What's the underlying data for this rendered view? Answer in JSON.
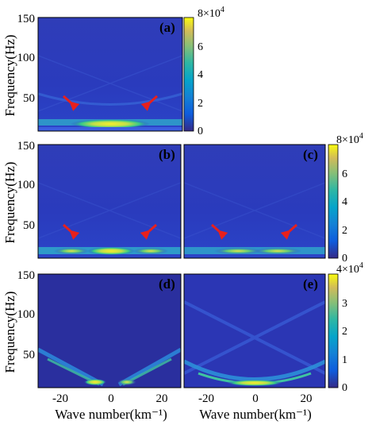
{
  "chart_data": [
    {
      "type": "heatmap",
      "panel": "(a)",
      "xlabel": "",
      "ylabel": "Frequency(Hz)",
      "xlim": [
        -28,
        28
      ],
      "ylim": [
        0,
        150
      ],
      "yticks": [
        "50",
        "100",
        "150"
      ],
      "xticks": [],
      "colorbar": {
        "range": [
          0,
          80000
        ],
        "ticks": [
          "0",
          "2",
          "4",
          "6",
          "8"
        ],
        "multiplier": "×10⁴"
      },
      "features": [
        {
          "kind": "bright-band",
          "freq_hz": 14,
          "wavenumber": [
            -25,
            25
          ],
          "peak_amplitude": 80000
        },
        {
          "kind": "dispersion-curve",
          "apex_freq_hz": 15,
          "edge_freq_hz": 45,
          "wavenumber": [
            -25,
            25
          ]
        }
      ],
      "annotations": [
        {
          "kind": "red-arrow",
          "at_wavenumber": -16,
          "at_freq_hz": 40
        },
        {
          "kind": "red-arrow",
          "at_wavenumber": 16,
          "at_freq_hz": 40
        }
      ]
    },
    {
      "type": "heatmap",
      "panel": "(b)",
      "ylabel": "Frequency(Hz)",
      "xlim": [
        -28,
        28
      ],
      "ylim": [
        0,
        150
      ],
      "yticks": [
        "50",
        "100",
        "150"
      ],
      "xticks": [],
      "features": [
        {
          "kind": "bright-band",
          "freq_hz": 12,
          "wavenumber": [
            -25,
            25
          ],
          "peak_amplitude": 80000
        }
      ],
      "annotations": [
        {
          "kind": "red-arrow",
          "at_wavenumber": -16,
          "at_freq_hz": 40
        },
        {
          "kind": "red-arrow",
          "at_wavenumber": 16,
          "at_freq_hz": 40
        }
      ]
    },
    {
      "type": "heatmap",
      "panel": "(c)",
      "xlim": [
        -28,
        28
      ],
      "ylim": [
        0,
        150
      ],
      "colorbar": {
        "range": [
          0,
          80000
        ],
        "ticks": [
          "0",
          "2",
          "4",
          "6",
          "8"
        ],
        "multiplier": "×10⁴"
      },
      "features": [
        {
          "kind": "bright-band",
          "freq_hz": 12,
          "wavenumber": [
            -25,
            25
          ],
          "peak_amplitude": 60000
        }
      ],
      "annotations": [
        {
          "kind": "red-arrow",
          "at_wavenumber": -16,
          "at_freq_hz": 40
        },
        {
          "kind": "red-arrow",
          "at_wavenumber": 16,
          "at_freq_hz": 40
        }
      ]
    },
    {
      "type": "heatmap",
      "panel": "(d)",
      "xlabel": "Wave number(km⁻¹)",
      "ylabel": "Frequency(Hz)",
      "xlim": [
        -28,
        28
      ],
      "ylim": [
        0,
        150
      ],
      "yticks": [
        "50",
        "100",
        "150"
      ],
      "xticks": [
        "-20",
        "0",
        "20"
      ],
      "features": [
        {
          "kind": "v-shaped-branches",
          "apex_freq_hz": 10,
          "edge_freq_hz": 60,
          "wavenumber": [
            -25,
            25
          ],
          "peak_amplitude": 40000
        }
      ]
    },
    {
      "type": "heatmap",
      "panel": "(e)",
      "xlabel": "Wave number(km⁻¹)",
      "xlim": [
        -28,
        28
      ],
      "ylim": [
        0,
        150
      ],
      "xticks": [
        "-20",
        "0",
        "20"
      ],
      "colorbar": {
        "range": [
          0,
          40000
        ],
        "ticks": [
          "0",
          "1",
          "2",
          "3",
          "4"
        ],
        "multiplier": "×10⁴"
      },
      "features": [
        {
          "kind": "u-shaped-curve",
          "apex_freq_hz": 12,
          "edge_freq_hz": 50,
          "wavenumber": [
            -25,
            25
          ],
          "peak_amplitude": 40000
        },
        {
          "kind": "x-shaped-diagonals",
          "crossing_freq_hz": 75,
          "wavenumber": [
            -25,
            25
          ]
        }
      ]
    }
  ],
  "labels": {
    "ylabel": "Frequency(Hz)",
    "xlabel": "Wave number(km⁻¹)",
    "panel_a": "(a)",
    "panel_b": "(b)",
    "panel_c": "(c)",
    "panel_d": "(d)",
    "panel_e": "(e)",
    "cb_mult_base": "8×10",
    "cb_mult_base_bottom": "4×10",
    "cb_mult_exp": "4"
  },
  "colors": {
    "background_field": "#2a36b8",
    "band_yellow": "#f7e23a",
    "band_green": "#3cc47a",
    "arrow_red": "#e8201c"
  }
}
